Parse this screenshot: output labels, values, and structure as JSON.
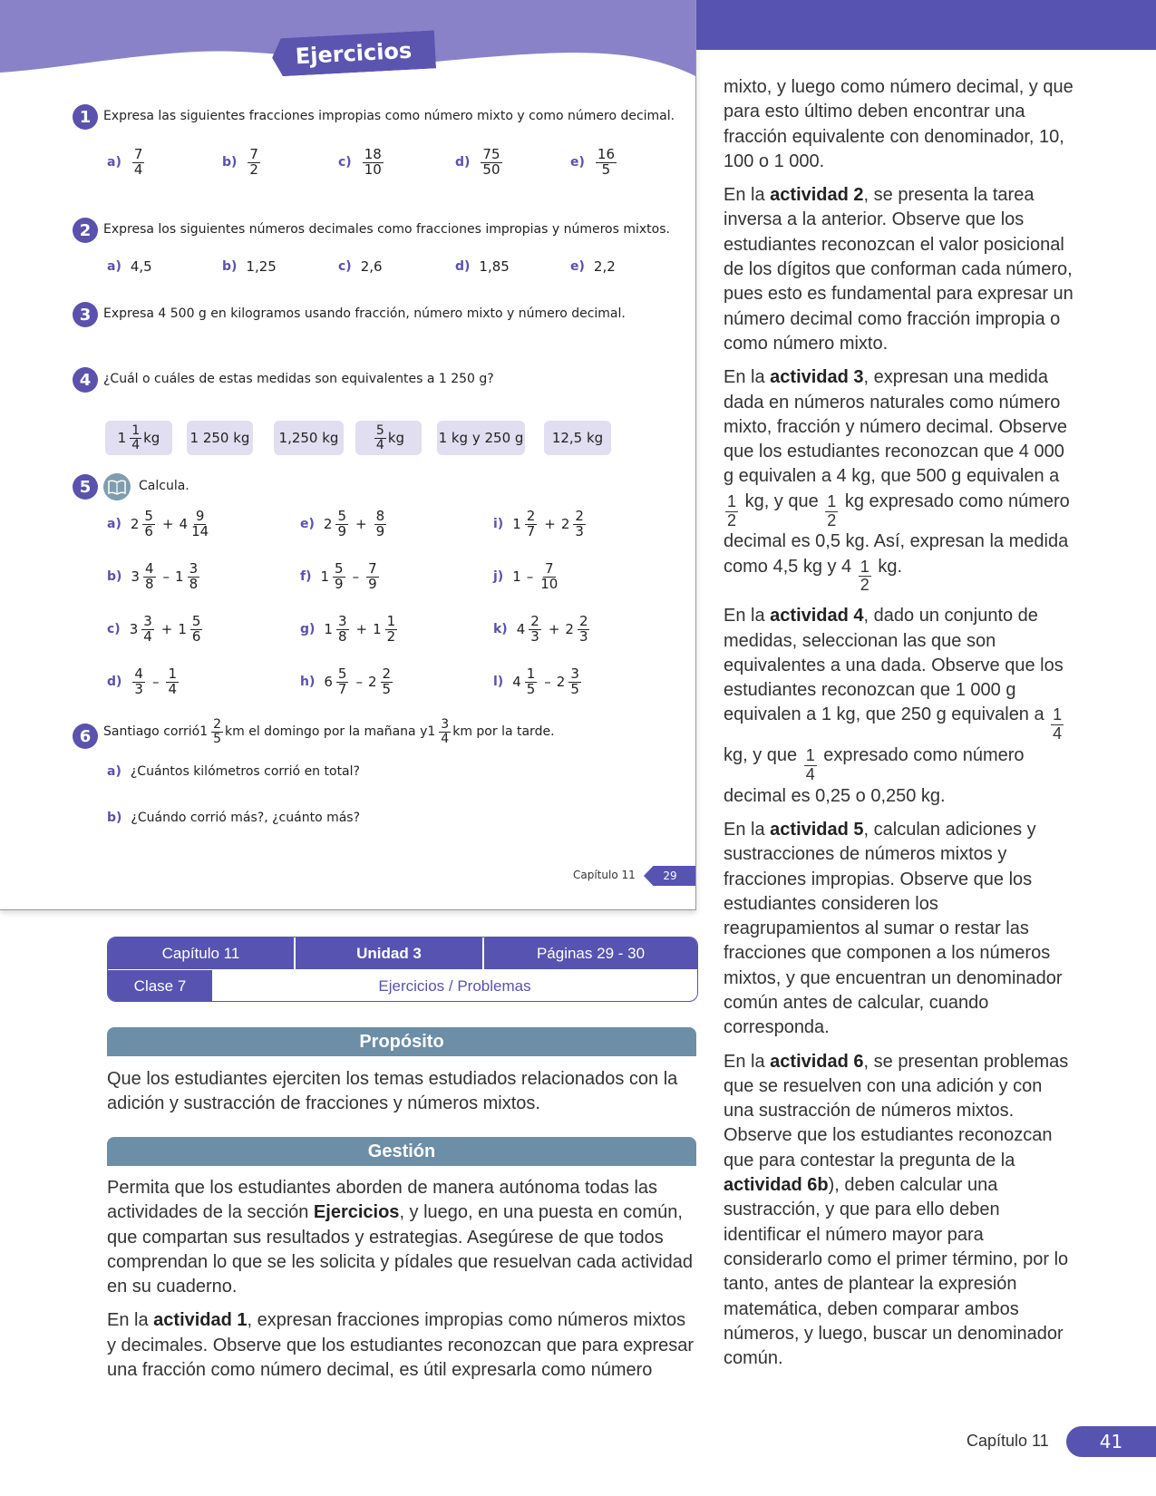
{
  "colors": {
    "accent": "#5a52ad",
    "header_wave": "#8a82c8",
    "section_bar": "#6c8ea6",
    "chip_bg": "#e0def0"
  },
  "student_page": {
    "title": "Ejercicios",
    "exercises": [
      {
        "number": "1",
        "text": [
          {
            "t": "Expresa las siguientes fracciones impropias como número mixto y como número decimal."
          }
        ],
        "items": [
          {
            "label": "a)",
            "expr": [
              {
                "n": "7",
                "d": "4"
              }
            ]
          },
          {
            "label": "b)",
            "expr": [
              {
                "n": "7",
                "d": "2"
              }
            ]
          },
          {
            "label": "c)",
            "expr": [
              {
                "n": "18",
                "d": "10"
              }
            ]
          },
          {
            "label": "d)",
            "expr": [
              {
                "n": "75",
                "d": "50"
              }
            ]
          },
          {
            "label": "e)",
            "expr": [
              {
                "n": "16",
                "d": "5"
              }
            ]
          }
        ]
      },
      {
        "number": "2",
        "text": [
          {
            "t": "Expresa los siguientes números decimales como fracciones impropias y números mixtos."
          }
        ],
        "items": [
          {
            "label": "a)",
            "expr": [
              {
                "t": "4,5"
              }
            ]
          },
          {
            "label": "b)",
            "expr": [
              {
                "t": "1,25"
              }
            ]
          },
          {
            "label": "c)",
            "expr": [
              {
                "t": "2,6"
              }
            ]
          },
          {
            "label": "d)",
            "expr": [
              {
                "t": "1,85"
              }
            ]
          },
          {
            "label": "e)",
            "expr": [
              {
                "t": "2,2"
              }
            ]
          }
        ]
      },
      {
        "number": "3",
        "text": [
          {
            "t": "Expresa 4 500 g en kilogramos usando fracción, número mixto y número decimal."
          }
        ],
        "items": []
      },
      {
        "number": "4",
        "text": [
          {
            "t": "¿Cuál o cuáles de estas medidas son equivalentes a 1 250 g?"
          }
        ],
        "items": [],
        "chips": [
          [
            {
              "w": "1",
              "n": "1",
              "d": "4"
            },
            {
              "t": " kg"
            }
          ],
          [
            {
              "t": "1 250 kg"
            }
          ],
          [
            {
              "t": "1,250 kg"
            }
          ],
          [
            {
              "n": "5",
              "d": "4"
            },
            {
              "t": " kg"
            }
          ],
          [
            {
              "t": "1 kg y 250 g"
            }
          ],
          [
            {
              "t": "12,5 kg"
            }
          ]
        ]
      },
      {
        "number": "5",
        "icon": "notebook-icon",
        "text": [
          {
            "t": "Calcula."
          }
        ],
        "items": [
          {
            "label": "a)",
            "expr": [
              {
                "w": "2",
                "n": "5",
                "d": "6"
              },
              {
                "op": "+"
              },
              {
                "w": "4",
                "n": "9",
                "d": "14"
              }
            ]
          },
          {
            "label": "b)",
            "expr": [
              {
                "w": "3",
                "n": "4",
                "d": "8"
              },
              {
                "op": "–"
              },
              {
                "w": "1",
                "n": "3",
                "d": "8"
              }
            ]
          },
          {
            "label": "c)",
            "expr": [
              {
                "w": "3",
                "n": "3",
                "d": "4"
              },
              {
                "op": "+"
              },
              {
                "w": "1",
                "n": "5",
                "d": "6"
              }
            ]
          },
          {
            "label": "d)",
            "expr": [
              {
                "n": "4",
                "d": "3"
              },
              {
                "op": "–"
              },
              {
                "n": "1",
                "d": "4"
              }
            ]
          },
          {
            "label": "e)",
            "expr": [
              {
                "w": "2",
                "n": "5",
                "d": "9"
              },
              {
                "op": "+"
              },
              {
                "n": "8",
                "d": "9"
              }
            ]
          },
          {
            "label": "f)",
            "expr": [
              {
                "w": "1",
                "n": "5",
                "d": "9"
              },
              {
                "op": "–"
              },
              {
                "n": "7",
                "d": "9"
              }
            ]
          },
          {
            "label": "g)",
            "expr": [
              {
                "w": "1",
                "n": "3",
                "d": "8"
              },
              {
                "op": "+"
              },
              {
                "w": "1",
                "n": "1",
                "d": "2"
              }
            ]
          },
          {
            "label": "h)",
            "expr": [
              {
                "w": "6",
                "n": "5",
                "d": "7"
              },
              {
                "op": "–"
              },
              {
                "w": "2",
                "n": "2",
                "d": "5"
              }
            ]
          },
          {
            "label": "i)",
            "expr": [
              {
                "w": "1",
                "n": "2",
                "d": "7"
              },
              {
                "op": "+"
              },
              {
                "w": "2",
                "n": "2",
                "d": "3"
              }
            ]
          },
          {
            "label": "j)",
            "expr": [
              {
                "t": "1"
              },
              {
                "op": "–"
              },
              {
                "n": "7",
                "d": "10"
              }
            ]
          },
          {
            "label": "k)",
            "expr": [
              {
                "w": "4",
                "n": "2",
                "d": "3"
              },
              {
                "op": "+"
              },
              {
                "w": "2",
                "n": "2",
                "d": "3"
              }
            ]
          },
          {
            "label": "l)",
            "expr": [
              {
                "w": "4",
                "n": "1",
                "d": "5"
              },
              {
                "op": "–"
              },
              {
                "w": "2",
                "n": "3",
                "d": "5"
              }
            ]
          }
        ]
      },
      {
        "number": "6",
        "text": [
          {
            "t": "Santiago corrió "
          },
          {
            "w": "1",
            "n": "2",
            "d": "5"
          },
          {
            "t": " km el domingo por la mañana y "
          },
          {
            "w": "1",
            "n": "3",
            "d": "4"
          },
          {
            "t": " km por la tarde."
          }
        ],
        "items": [
          {
            "label": "a)",
            "expr": [
              {
                "t": "¿Cuántos kilómetros corrió en total?"
              }
            ]
          },
          {
            "label": "b)",
            "expr": [
              {
                "t": "¿Cuándo corrió más?, ¿cuánto más?"
              }
            ]
          }
        ]
      }
    ],
    "footer": {
      "chapter": "Capítulo 11",
      "page": "29"
    }
  },
  "info_table": {
    "chapter": "Capítulo 11",
    "unit": "Unidad 3",
    "pages": "Páginas 29 - 30",
    "class": "Clase 7",
    "topic": "Ejercicios / Problemas"
  },
  "proposito": {
    "title": "Propósito",
    "text": "Que los estudiantes ejerciten los temas estudiados relacionados con la adición y sustracción de fracciones y números mixtos."
  },
  "gestion": {
    "title": "Gestión",
    "paragraphs": [
      [
        {
          "t": "Permita que los estudiantes aborden de manera autónoma todas las actividades de la sección "
        },
        {
          "b": "Ejercicios"
        },
        {
          "t": ", y luego, en una puesta en común, que compartan sus resultados y estrategias. Asegúrese de que todos comprendan lo que se les solicita y pídales que resuelvan cada actividad en su cuaderno."
        }
      ],
      [
        {
          "t": "En la "
        },
        {
          "b": "actividad 1"
        },
        {
          "t": ", expresan fracciones impropias como números mixtos y decimales. Observe que los estudiantes reconozcan que para expresar una fracción como número decimal, es útil expresarla como número"
        }
      ]
    ]
  },
  "right_column": {
    "paragraphs": [
      [
        {
          "t": "mixto, y luego como número decimal, y que para esto último deben encontrar una fracción equivalente con denominador, 10, 100 o 1 000."
        }
      ],
      [
        {
          "t": "En la "
        },
        {
          "b": "actividad 2"
        },
        {
          "t": ", se presenta la tarea inversa a la anterior. Observe que los estudiantes reconozcan el valor posicional de los dígitos que conforman cada número, pues esto es fundamental para expresar un número decimal como fracción impropia o como número mixto."
        }
      ],
      [
        {
          "t": "En la "
        },
        {
          "b": "actividad 3"
        },
        {
          "t": ", expresan una medida dada en números naturales como número mixto, fracción y número decimal. Observe que los estudiantes reconozcan que 4 000 g equivalen a 4 kg, que 500 g equivalen a "
        },
        {
          "n": "1",
          "d": "2"
        },
        {
          "t": " kg, y que "
        },
        {
          "n": "1",
          "d": "2"
        },
        {
          "t": " kg expresado como número decimal es 0,5 kg. Así, expresan la medida como 4,5 kg y 4 "
        },
        {
          "n": "1",
          "d": "2"
        },
        {
          "t": " kg."
        }
      ],
      [
        {
          "t": "En la "
        },
        {
          "b": "actividad 4"
        },
        {
          "t": ", dado un conjunto de medidas, seleccionan las que son equivalentes a una dada. Observe que los estudiantes reconozcan que 1 000 g equivalen a 1 kg, que 250 g equivalen a "
        },
        {
          "n": "1",
          "d": "4"
        },
        {
          "t": " kg, y que "
        },
        {
          "n": "1",
          "d": "4"
        },
        {
          "t": " expresado como número decimal es 0,25 o 0,250 kg."
        }
      ],
      [
        {
          "t": "En la "
        },
        {
          "b": "actividad 5"
        },
        {
          "t": ", calculan adiciones y sustracciones de números mixtos y fracciones impropias. Observe que los estudiantes consideren los reagrupamientos al sumar o restar las fracciones que componen a los números mixtos, y que encuentran un denominador común antes de calcular, cuando corresponda."
        }
      ],
      [
        {
          "t": "En la "
        },
        {
          "b": "actividad 6"
        },
        {
          "t": ", se presentan problemas que se resuelven con una adición y con una sustracción de números mixtos. Observe que los estudiantes reconozcan que para contestar la pregunta de la "
        },
        {
          "b": "actividad 6b"
        },
        {
          "t": "), deben calcular una sustracción, y que para ello deben identificar el número mayor para considerarlo como el primer término, por lo tanto, antes de plantear la expresión matemática, deben comparar ambos números, y luego, buscar un denominador común."
        }
      ]
    ]
  },
  "page_footer": {
    "chapter": "Capítulo 11",
    "page": "41"
  }
}
